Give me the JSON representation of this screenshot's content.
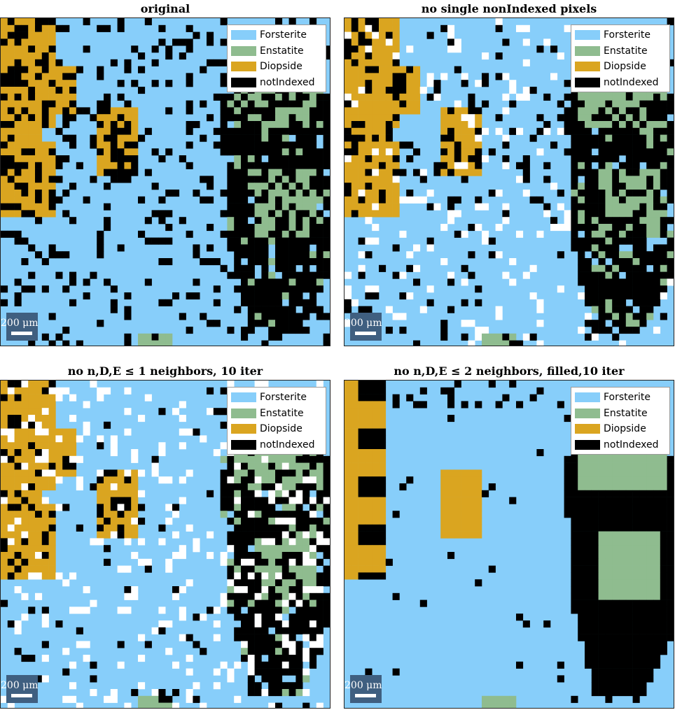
{
  "legend": {
    "items": [
      {
        "label": "Forsterite",
        "color": "#87cefa"
      },
      {
        "label": "Enstatite",
        "color": "#8fbc8f"
      },
      {
        "label": "Diopside",
        "color": "#daa520"
      },
      {
        "label": "notIndexed",
        "color": "#000000"
      }
    ]
  },
  "scalebar": {
    "label": "200 μm",
    "color": "#3f5f80"
  },
  "panels": [
    {
      "title": "original"
    },
    {
      "title": "no single nonIndexed pixels"
    },
    {
      "title": "no n,D,E ≤ 1 neighbors, 10 iter"
    },
    {
      "title": "no n,D,E ≤ 2 neighbors, filled,10 iter"
    }
  ],
  "chart_data": [
    {
      "type": "heatmap",
      "title": "original",
      "categories": [
        "Forsterite",
        "Enstatite",
        "Diopside",
        "notIndexed"
      ],
      "background_phase": "Forsterite"
    },
    {
      "type": "heatmap",
      "title": "no single nonIndexed pixels",
      "categories": [
        "Forsterite",
        "Enstatite",
        "Diopside",
        "notIndexed"
      ],
      "background_phase": "Forsterite"
    },
    {
      "type": "heatmap",
      "title": "no n,D,E ≤ 1 neighbors, 10 iter",
      "categories": [
        "Forsterite",
        "Enstatite",
        "Diopside",
        "notIndexed"
      ],
      "background_phase": "Forsterite"
    },
    {
      "type": "heatmap",
      "title": "no n,D,E ≤ 2 neighbors, filled,10 iter",
      "categories": [
        "Forsterite",
        "Enstatite",
        "Diopside",
        "notIndexed"
      ],
      "background_phase": "Forsterite"
    }
  ]
}
